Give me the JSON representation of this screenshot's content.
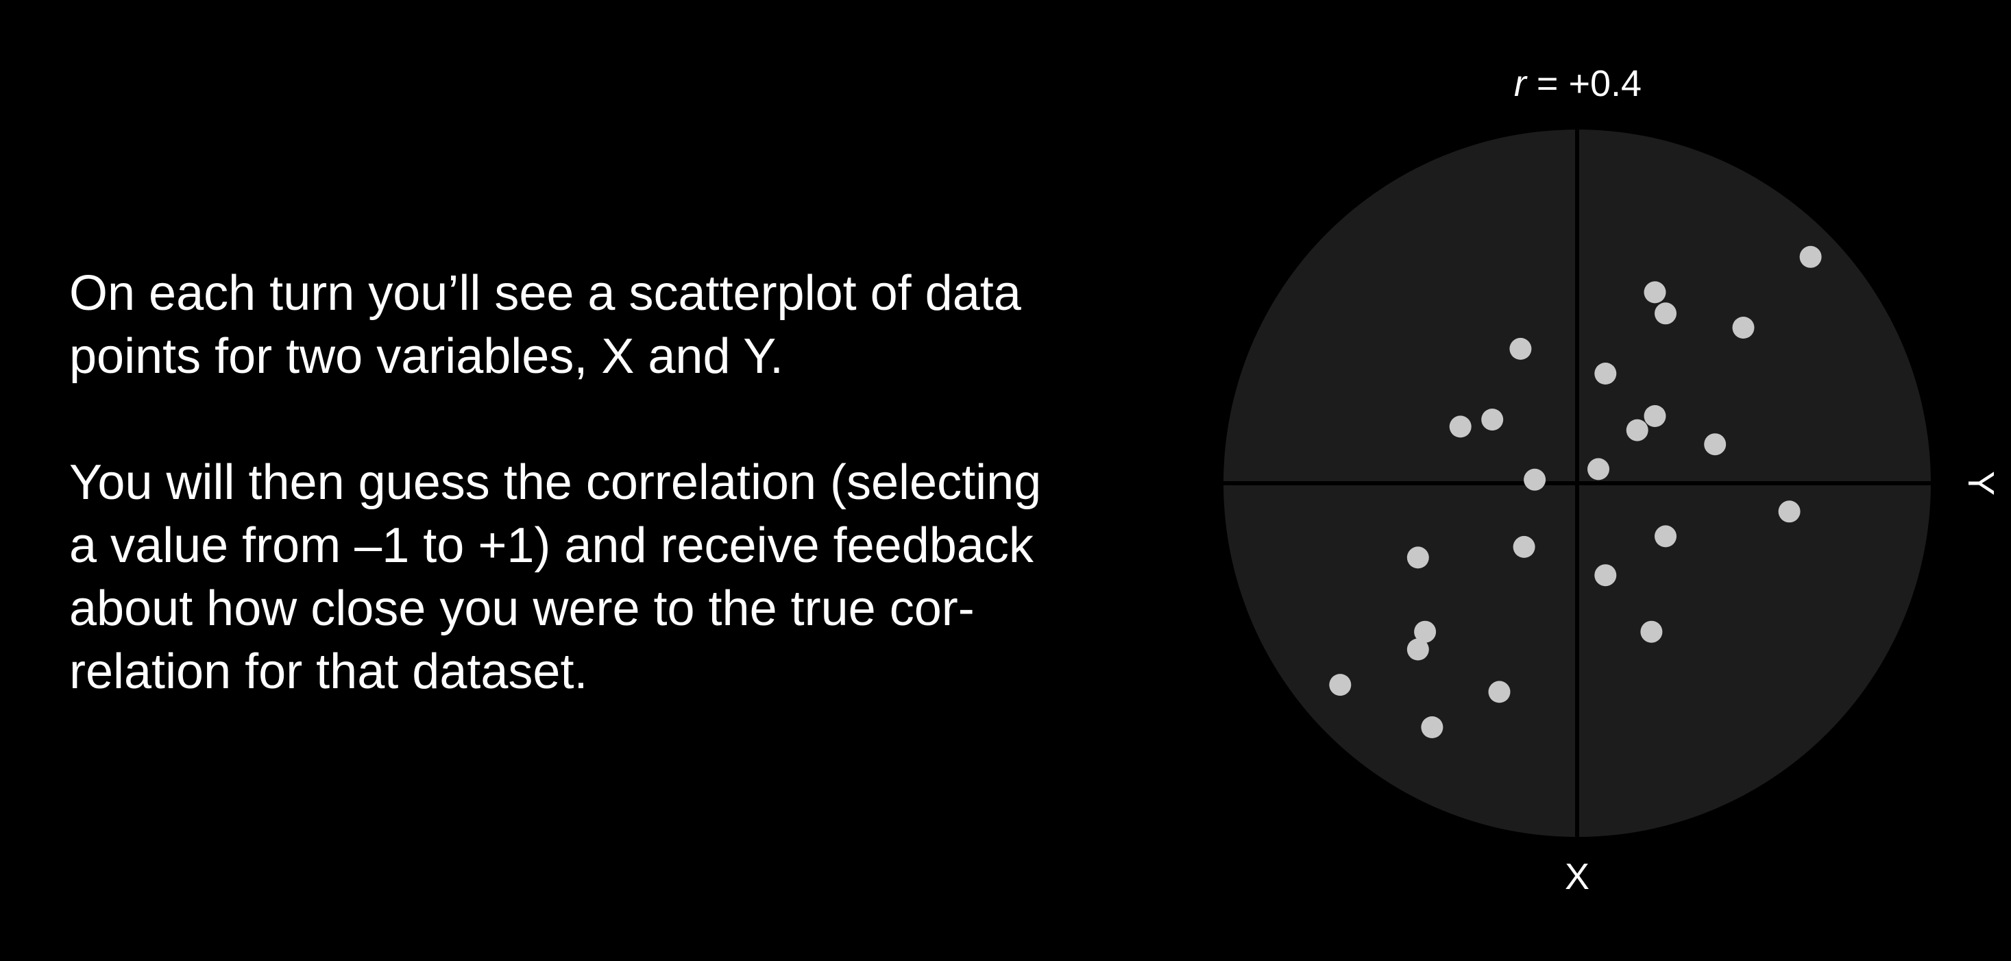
{
  "instructions": {
    "paragraph_1": "On each turn you’ll see a scatterplot of data\npoints for two variables, X and Y.",
    "paragraph_2": "You will then guess the correlation (selecting\na value from –1 to +1) and receive feedback\nabout how close you were to the true cor-\nrelation for that dataset."
  },
  "correlation_label": {
    "symbol": "r",
    "value": " = +0.4"
  },
  "colors": {
    "background": "#000000",
    "plot_disc": "#1c1c1c",
    "axes": "#000000",
    "points": "#c8c8c8",
    "text": "#ffffff"
  },
  "chart_data": {
    "type": "scatter",
    "xlabel": "X",
    "ylabel": "Y",
    "xlim": [
      -1,
      1
    ],
    "ylim": [
      -1,
      1
    ],
    "grid": false,
    "points": [
      {
        "x": 0.66,
        "y": 0.64
      },
      {
        "x": 0.22,
        "y": 0.54
      },
      {
        "x": 0.25,
        "y": 0.48
      },
      {
        "x": 0.47,
        "y": 0.44
      },
      {
        "x": -0.16,
        "y": 0.38
      },
      {
        "x": 0.08,
        "y": 0.31
      },
      {
        "x": 0.22,
        "y": 0.19
      },
      {
        "x": -0.24,
        "y": 0.18
      },
      {
        "x": -0.33,
        "y": 0.16
      },
      {
        "x": 0.17,
        "y": 0.15
      },
      {
        "x": 0.39,
        "y": 0.11
      },
      {
        "x": 0.06,
        "y": 0.04
      },
      {
        "x": -0.12,
        "y": 0.01
      },
      {
        "x": 0.6,
        "y": -0.08
      },
      {
        "x": 0.25,
        "y": -0.15
      },
      {
        "x": -0.15,
        "y": -0.18
      },
      {
        "x": -0.45,
        "y": -0.21
      },
      {
        "x": 0.08,
        "y": -0.26
      },
      {
        "x": -0.43,
        "y": -0.42
      },
      {
        "x": 0.21,
        "y": -0.42
      },
      {
        "x": -0.45,
        "y": -0.47
      },
      {
        "x": -0.67,
        "y": -0.57
      },
      {
        "x": -0.22,
        "y": -0.59
      },
      {
        "x": -0.41,
        "y": -0.69
      }
    ]
  }
}
